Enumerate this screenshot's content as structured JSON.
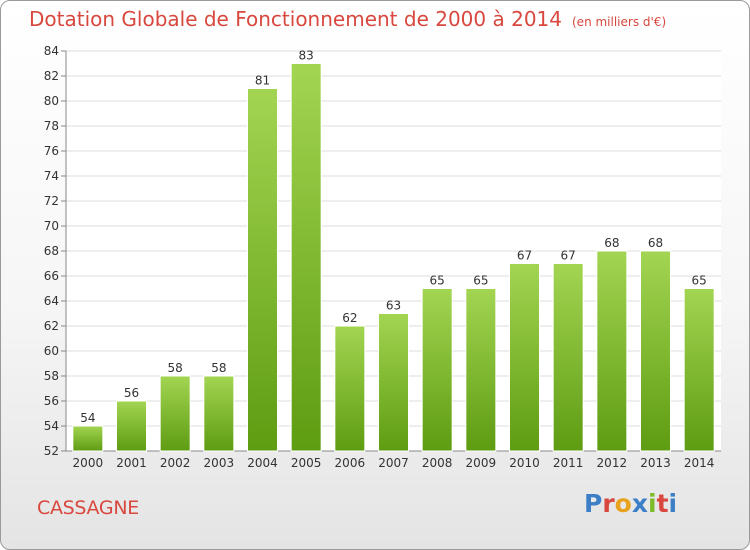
{
  "header": {
    "title": "Dotation Globale de Fonctionnement de 2000 à 2014",
    "subtitle": "(en milliers d'€)"
  },
  "footer": {
    "commune": "CASSAGNE",
    "logo_text": "Proxiti"
  },
  "colors": {
    "title": "#d8483e",
    "bar_light": "#a3d552",
    "bar_dark": "#5e9c12",
    "logo_letters": [
      "#3d7fc6",
      "#d8483e",
      "#e8a21d",
      "#3d7fc6",
      "#7cbc2a",
      "#d8483e",
      "#3d7fc6"
    ]
  },
  "chart_data": {
    "type": "bar",
    "categories": [
      "2000",
      "2001",
      "2002",
      "2003",
      "2004",
      "2005",
      "2006",
      "2007",
      "2008",
      "2009",
      "2010",
      "2011",
      "2012",
      "2013",
      "2014"
    ],
    "values": [
      54,
      56,
      58,
      58,
      81,
      83,
      62,
      63,
      65,
      65,
      67,
      67,
      68,
      68,
      65
    ],
    "ylim": [
      52,
      84
    ],
    "yticks": [
      52,
      54,
      56,
      58,
      60,
      62,
      64,
      66,
      68,
      70,
      72,
      74,
      76,
      78,
      80,
      82,
      84
    ],
    "grid": true
  }
}
